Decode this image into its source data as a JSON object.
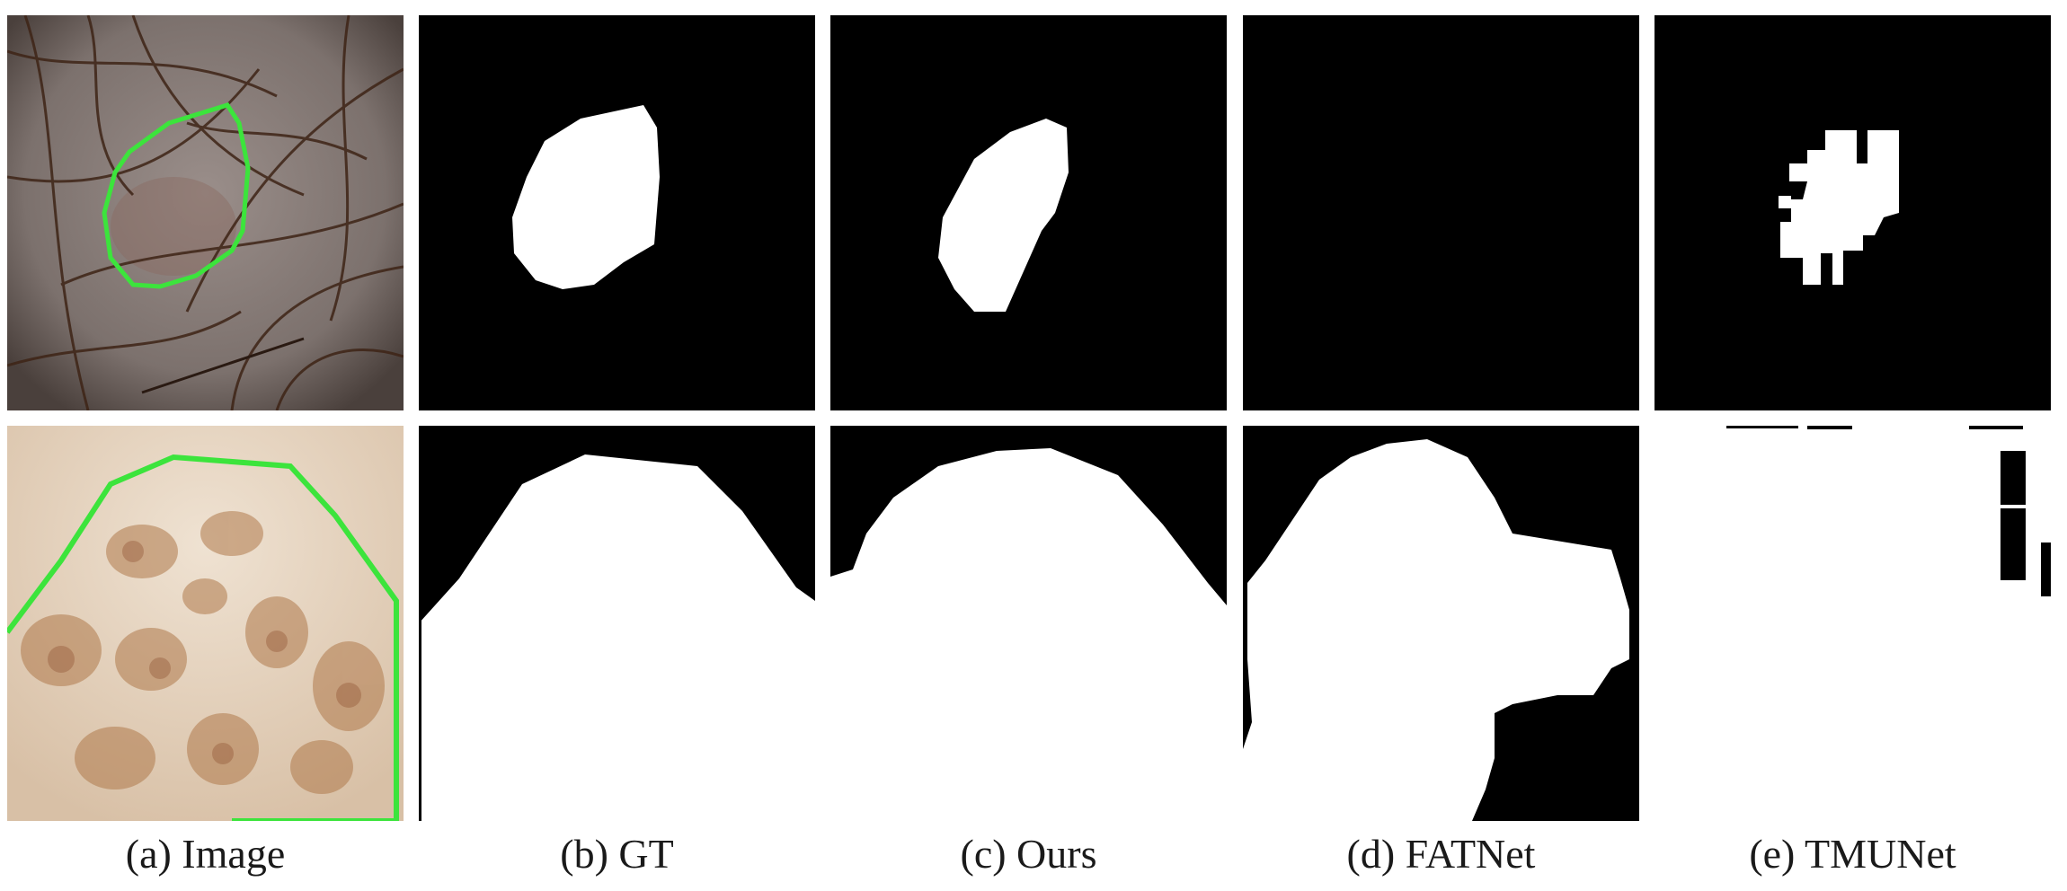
{
  "figure": {
    "columns": [
      {
        "key": "image",
        "caption": "(a) Image"
      },
      {
        "key": "gt",
        "caption": "(b) GT"
      },
      {
        "key": "ours",
        "caption": "(c) Ours"
      },
      {
        "key": "fatnet",
        "caption": "(d) FATNet"
      },
      {
        "key": "tmunet",
        "caption": "(e) TMUNet"
      }
    ],
    "colors": {
      "mask_foreground": "#ffffff",
      "mask_background": "#000000",
      "contour": "#3ce43c",
      "skin_row1": "#7a6e6a",
      "skin_row2": "#e8d6c4",
      "hair": "#4a2a1a",
      "lesion_row2": "#b87a4a"
    }
  }
}
